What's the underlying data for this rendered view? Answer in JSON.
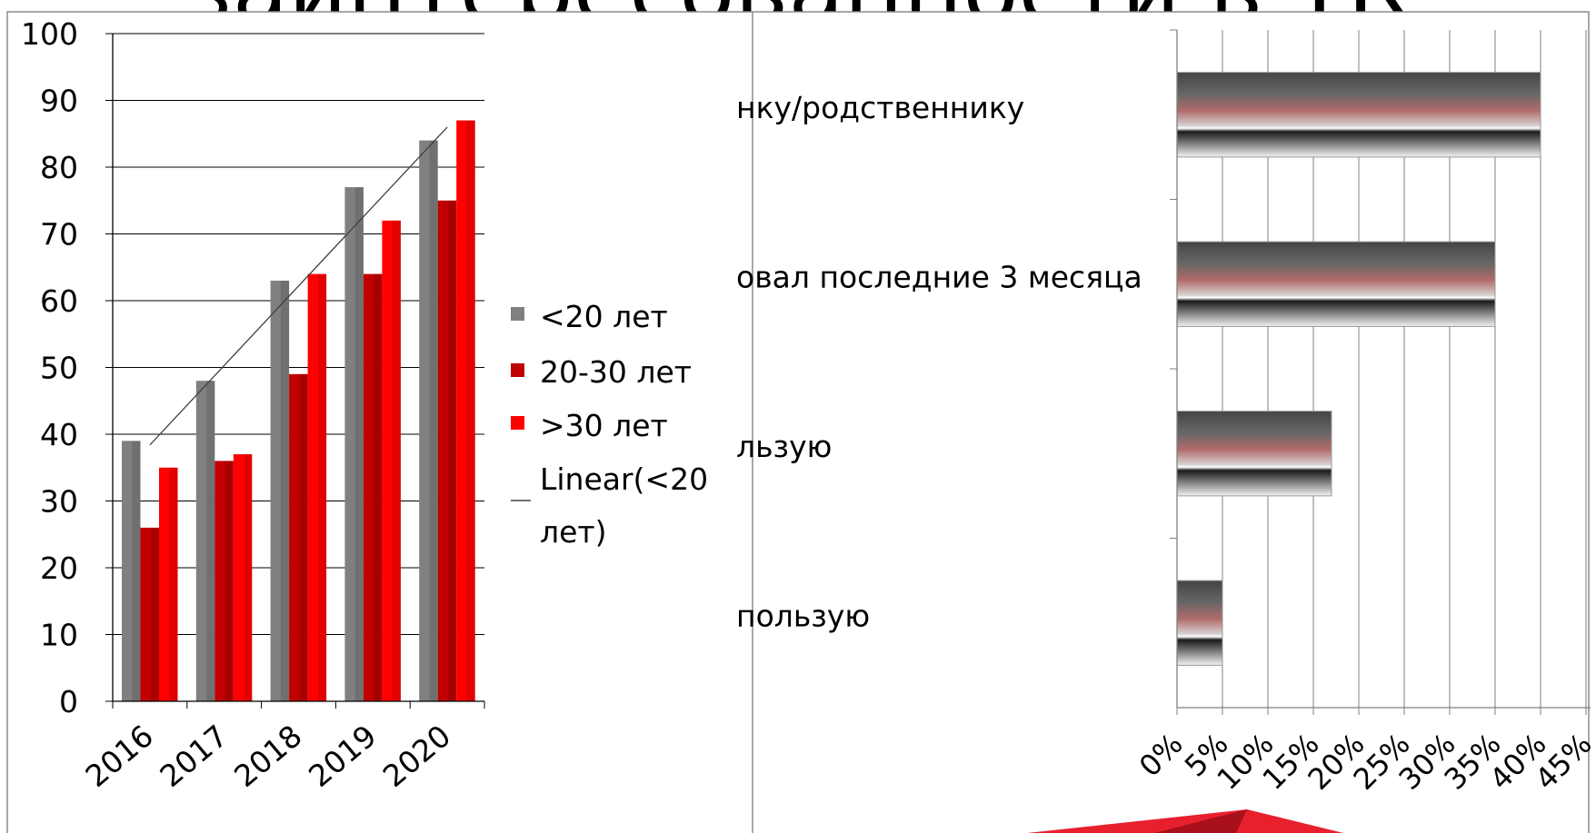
{
  "slide": {
    "title_fragment": "заинтересованности в ТК"
  },
  "chart_data": [
    {
      "type": "bar",
      "title": "",
      "xlabel": "",
      "ylabel": "",
      "categories": [
        "2016",
        "2017",
        "2018",
        "2019",
        "2020"
      ],
      "ylim": [
        0,
        100
      ],
      "yticks": [
        0,
        10,
        20,
        30,
        40,
        50,
        60,
        70,
        80,
        90,
        100
      ],
      "series": [
        {
          "name": "<20 лет",
          "values": [
            39,
            48,
            63,
            77,
            84
          ],
          "color": "#808080"
        },
        {
          "name": "20-30 лет",
          "values": [
            26,
            36,
            49,
            64,
            75
          ],
          "color": "#c00000"
        },
        {
          "name": ">30 лет",
          "values": [
            35,
            37,
            64,
            72,
            87
          ],
          "color": "#ff0000"
        }
      ],
      "trendline": {
        "legend_label_lines": [
          "Linear(<20",
          "лет)"
        ],
        "of_series": "<20 лет",
        "type": "linear",
        "color": "#404040"
      },
      "legend_position": "right",
      "grid": true
    },
    {
      "type": "bar",
      "orientation": "horizontal",
      "categories": [
        "нку/родственнику",
        "овал последние 3 месяца",
        "льзую",
        "пользую"
      ],
      "values": [
        40,
        35,
        17,
        5
      ],
      "unit": "%",
      "xlim": [
        0,
        45
      ],
      "xticks": [
        "0%",
        "5%",
        "10%",
        "15%",
        "20%",
        "25%",
        "30%",
        "35%",
        "40%",
        "45%"
      ],
      "grid": true,
      "legend_position": "none"
    }
  ]
}
